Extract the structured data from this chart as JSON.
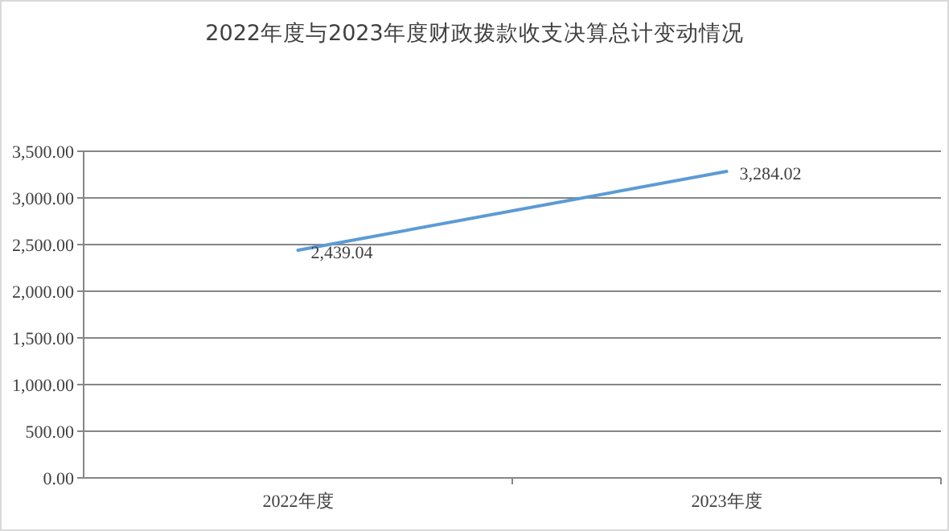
{
  "chart_data": {
    "type": "line",
    "title": "2022年度与2023年度财政拨款收支决算总计变动情况",
    "categories": [
      "2022年度",
      "2023年度"
    ],
    "series": [
      {
        "color": "#5b9bd5",
        "values": [
          2439.04,
          3284.02
        ]
      }
    ],
    "value_labels": [
      "2,439.04",
      "3,284.02"
    ],
    "ylim": [
      0,
      3500
    ],
    "yticks": [
      {
        "value": 0,
        "label": "0.00"
      },
      {
        "value": 500,
        "label": "500.00"
      },
      {
        "value": 1000,
        "label": "1,000.00"
      },
      {
        "value": 1500,
        "label": "1,500.00"
      },
      {
        "value": 2000,
        "label": "2,000.00"
      },
      {
        "value": 2500,
        "label": "2,500.00"
      },
      {
        "value": 3000,
        "label": "3,000.00"
      },
      {
        "value": 3500,
        "label": "3,500.00"
      }
    ],
    "grid": "y",
    "marker": "none",
    "line_style": "solid"
  }
}
